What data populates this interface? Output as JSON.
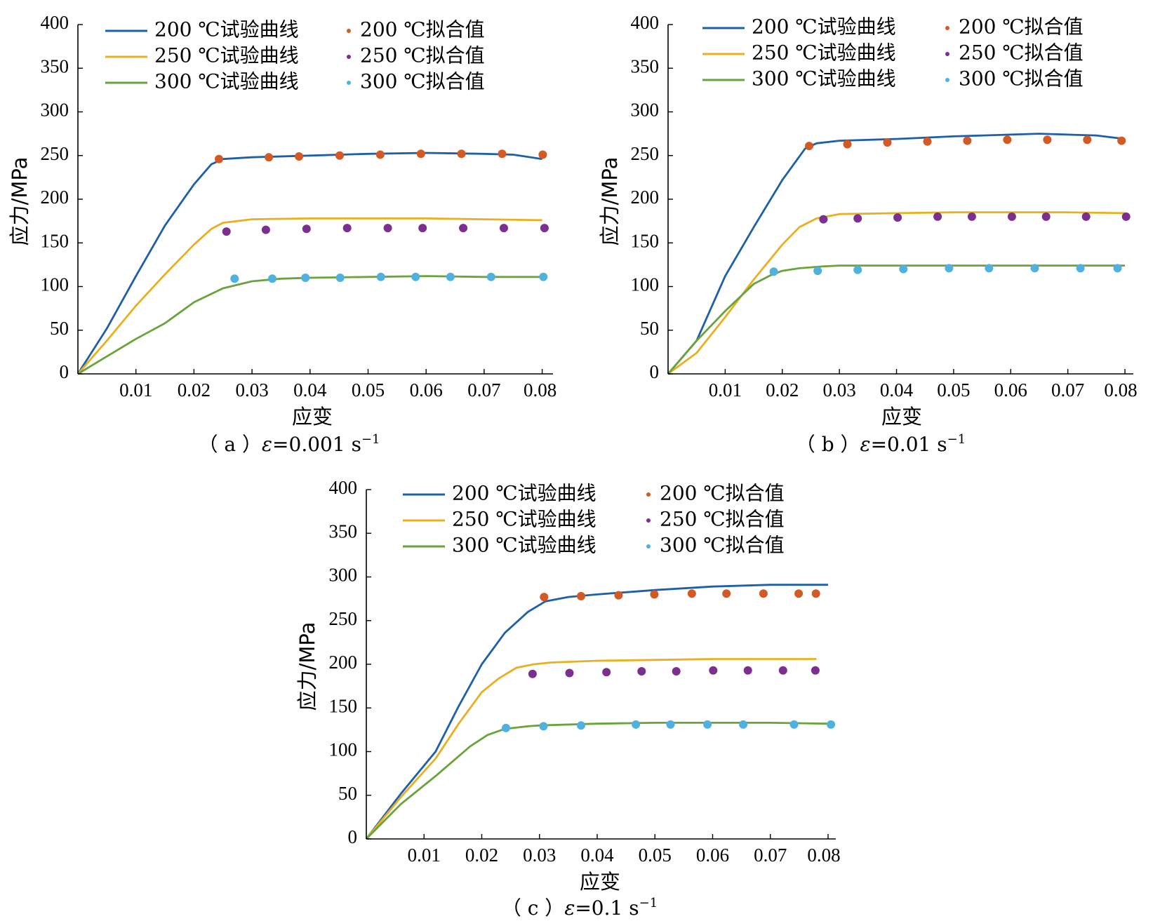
{
  "colors": {
    "c200": "#1f5fa8",
    "c250": "#e8b020",
    "c300": "#6aa33c",
    "f200": "#d35a24",
    "f250": "#7b2f8f",
    "f300": "#4fb2de"
  },
  "legend": {
    "exp200": "200 ℃试验曲线",
    "exp250": "250 ℃试验曲线",
    "exp300": "300 ℃试验曲线",
    "fit200": "200 ℃拟合值",
    "fit250": "250 ℃拟合值",
    "fit300": "300 ℃拟合值"
  },
  "chart_data": [
    {
      "type": "line",
      "caption_prefix": "（ a ）",
      "caption_symbol": "ε",
      "caption_rate": "=0.001 s",
      "caption_exp": "−1",
      "xlabel": "应变",
      "ylabel": "应力/MPa",
      "xlim": [
        0,
        0.08
      ],
      "ylim": [
        0,
        400
      ],
      "xticks": [
        "0.01",
        "0.02",
        "0.03",
        "0.04",
        "0.05",
        "0.06",
        "0.07",
        "0.08"
      ],
      "yticks": [
        "0",
        "50",
        "100",
        "150",
        "200",
        "250",
        "300",
        "350",
        "400"
      ],
      "series": [
        {
          "name": "200 ℃试验曲线",
          "kind": "line",
          "color_key": "c200",
          "x": [
            0,
            0.005,
            0.01,
            0.015,
            0.02,
            0.023,
            0.025,
            0.03,
            0.04,
            0.05,
            0.06,
            0.07,
            0.075,
            0.08
          ],
          "y": [
            0,
            52,
            112,
            170,
            217,
            240,
            246,
            248,
            250,
            252,
            253,
            252,
            251,
            246
          ]
        },
        {
          "name": "250 ℃试验曲线",
          "kind": "line",
          "color_key": "c250",
          "x": [
            0,
            0.005,
            0.01,
            0.015,
            0.02,
            0.023,
            0.025,
            0.03,
            0.04,
            0.05,
            0.06,
            0.07,
            0.08
          ],
          "y": [
            0,
            38,
            78,
            114,
            148,
            166,
            173,
            177,
            178,
            178,
            178,
            177,
            176
          ]
        },
        {
          "name": "300 ℃试验曲线",
          "kind": "line",
          "color_key": "c300",
          "x": [
            0,
            0.005,
            0.01,
            0.015,
            0.02,
            0.025,
            0.03,
            0.035,
            0.04,
            0.05,
            0.06,
            0.07,
            0.08
          ],
          "y": [
            0,
            20,
            40,
            58,
            82,
            98,
            106,
            109,
            110,
            111,
            112,
            111,
            111
          ]
        },
        {
          "name": "200 ℃拟合值",
          "kind": "scatter",
          "color_key": "f200",
          "x": [
            0.0243,
            0.0329,
            0.0381,
            0.0451,
            0.0521,
            0.0591,
            0.0661,
            0.0731,
            0.0801
          ],
          "y": [
            246,
            248,
            249,
            250,
            251,
            252,
            252,
            252,
            251
          ]
        },
        {
          "name": "250 ℃拟合值",
          "kind": "scatter",
          "color_key": "f250",
          "x": [
            0.0256,
            0.0324,
            0.0394,
            0.0464,
            0.0534,
            0.0594,
            0.0664,
            0.0734,
            0.0804
          ],
          "y": [
            163,
            165,
            166,
            167,
            167,
            167,
            167,
            167,
            167
          ]
        },
        {
          "name": "300 ℃拟合值",
          "kind": "scatter",
          "color_key": "f300",
          "x": [
            0.027,
            0.0335,
            0.0392,
            0.0452,
            0.0522,
            0.0582,
            0.0642,
            0.0712,
            0.0802
          ],
          "y": [
            109,
            109,
            110,
            110,
            111,
            111,
            111,
            111,
            111
          ]
        }
      ]
    },
    {
      "type": "line",
      "caption_prefix": "（ b ）",
      "caption_symbol": "ε",
      "caption_rate": "=0.01 s",
      "caption_exp": "−1",
      "xlabel": "应变",
      "ylabel": "应力/MPa",
      "xlim": [
        0,
        0.08
      ],
      "ylim": [
        0,
        400
      ],
      "xticks": [
        "0.01",
        "0.02",
        "0.03",
        "0.04",
        "0.05",
        "0.06",
        "0.07",
        "0.08"
      ],
      "yticks": [
        "0",
        "50",
        "100",
        "150",
        "200",
        "250",
        "300",
        "350",
        "400"
      ],
      "series": [
        {
          "name": "200 ℃试验曲线",
          "kind": "line",
          "color_key": "c200",
          "x": [
            0,
            0.005,
            0.01,
            0.015,
            0.02,
            0.024,
            0.026,
            0.03,
            0.04,
            0.05,
            0.06,
            0.065,
            0.07,
            0.075,
            0.08
          ],
          "y": [
            0,
            38,
            112,
            168,
            222,
            258,
            264,
            267,
            269,
            272,
            274,
            275,
            274,
            273,
            269
          ]
        },
        {
          "name": "250 ℃试验曲线",
          "kind": "line",
          "color_key": "c250",
          "x": [
            0,
            0.005,
            0.01,
            0.015,
            0.02,
            0.023,
            0.026,
            0.03,
            0.04,
            0.05,
            0.06,
            0.07,
            0.08
          ],
          "y": [
            0,
            24,
            65,
            108,
            148,
            168,
            178,
            183,
            184,
            185,
            185,
            185,
            184
          ]
        },
        {
          "name": "300 ℃试验曲线",
          "kind": "line",
          "color_key": "c300",
          "x": [
            0,
            0.005,
            0.01,
            0.015,
            0.018,
            0.02,
            0.023,
            0.027,
            0.03,
            0.04,
            0.05,
            0.06,
            0.07,
            0.08
          ],
          "y": [
            0,
            38,
            72,
            103,
            113,
            118,
            121,
            123,
            124,
            124,
            124,
            124,
            124,
            124
          ]
        },
        {
          "name": "200 ℃拟合值",
          "kind": "scatter",
          "color_key": "f200",
          "x": [
            0.0247,
            0.0314,
            0.0384,
            0.0454,
            0.0524,
            0.0594,
            0.0664,
            0.0734,
            0.0794
          ],
          "y": [
            261,
            263,
            265,
            266,
            267,
            268,
            268,
            268,
            267
          ]
        },
        {
          "name": "250 ℃拟合值",
          "kind": "scatter",
          "color_key": "f250",
          "x": [
            0.0272,
            0.0332,
            0.0402,
            0.0472,
            0.0532,
            0.0602,
            0.0662,
            0.0732,
            0.0802
          ],
          "y": [
            177,
            178,
            179,
            180,
            180,
            180,
            180,
            180,
            180
          ]
        },
        {
          "name": "300 ℃拟合值",
          "kind": "scatter",
          "color_key": "f300",
          "x": [
            0.0185,
            0.0262,
            0.0332,
            0.0412,
            0.0492,
            0.0562,
            0.0642,
            0.0722,
            0.0787
          ],
          "y": [
            117,
            118,
            119,
            120,
            121,
            121,
            121,
            121,
            121
          ]
        }
      ]
    },
    {
      "type": "line",
      "caption_prefix": "（ c ）",
      "caption_symbol": "ε",
      "caption_rate": "=0.1 s",
      "caption_exp": "−1",
      "xlabel": "应变",
      "ylabel": "应力/MPa",
      "xlim": [
        0,
        0.08
      ],
      "ylim": [
        0,
        400
      ],
      "xticks": [
        "0.01",
        "0.02",
        "0.03",
        "0.04",
        "0.05",
        "0.06",
        "0.07",
        "0.08"
      ],
      "yticks": [
        "0",
        "50",
        "100",
        "150",
        "200",
        "250",
        "300",
        "350",
        "400"
      ],
      "series": [
        {
          "name": "200 ℃试验曲线",
          "kind": "line",
          "color_key": "c200",
          "x": [
            0,
            0.006,
            0.012,
            0.016,
            0.02,
            0.024,
            0.028,
            0.031,
            0.035,
            0.04,
            0.05,
            0.06,
            0.07,
            0.08
          ],
          "y": [
            0,
            52,
            100,
            152,
            200,
            236,
            260,
            272,
            277,
            280,
            285,
            289,
            291,
            291
          ]
        },
        {
          "name": "250 ℃试验曲线",
          "kind": "line",
          "color_key": "c250",
          "x": [
            0,
            0.006,
            0.012,
            0.016,
            0.02,
            0.023,
            0.026,
            0.029,
            0.032,
            0.04,
            0.05,
            0.06,
            0.07,
            0.078
          ],
          "y": [
            0,
            48,
            92,
            132,
            168,
            184,
            196,
            200,
            202,
            204,
            205,
            206,
            206,
            206
          ]
        },
        {
          "name": "300 ℃试验曲线",
          "kind": "line",
          "color_key": "c300",
          "x": [
            0,
            0.006,
            0.012,
            0.018,
            0.021,
            0.024,
            0.028,
            0.03,
            0.04,
            0.05,
            0.06,
            0.07,
            0.08
          ],
          "y": [
            0,
            40,
            72,
            106,
            119,
            126,
            129,
            130,
            132,
            133,
            133,
            133,
            132
          ]
        },
        {
          "name": "200 ℃拟合值",
          "kind": "scatter",
          "color_key": "f200",
          "x": [
            0.0308,
            0.0372,
            0.0437,
            0.0499,
            0.0564,
            0.0624,
            0.0688,
            0.0749,
            0.0779
          ],
          "y": [
            277,
            278,
            279,
            280,
            281,
            281,
            281,
            281,
            281
          ]
        },
        {
          "name": "250 ℃拟合值",
          "kind": "scatter",
          "color_key": "f250",
          "x": [
            0.0288,
            0.0352,
            0.0416,
            0.0477,
            0.0537,
            0.0601,
            0.0661,
            0.0722,
            0.0778
          ],
          "y": [
            189,
            190,
            191,
            192,
            192,
            193,
            193,
            193,
            193
          ]
        },
        {
          "name": "300 ℃拟合值",
          "kind": "scatter",
          "color_key": "f300",
          "x": [
            0.0242,
            0.0307,
            0.0372,
            0.0467,
            0.0527,
            0.0591,
            0.0653,
            0.0741,
            0.0805
          ],
          "y": [
            127,
            129,
            130,
            131,
            131,
            131,
            131,
            131,
            131
          ]
        }
      ]
    }
  ]
}
